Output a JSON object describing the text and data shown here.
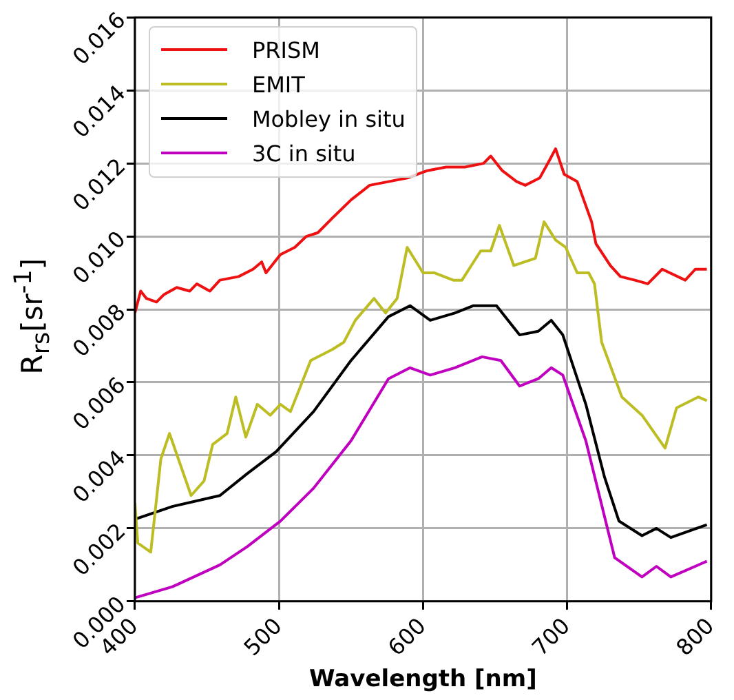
{
  "chart_data": {
    "type": "line",
    "xlabel": "Wavelength [nm]",
    "ylabel": "R$_{rs}$[sr$^{-1}$]",
    "xlim": [
      400,
      800
    ],
    "ylim": [
      0,
      0.016
    ],
    "xticks": [
      400,
      500,
      600,
      700,
      800
    ],
    "yticks": [
      {
        "value": 0,
        "label": "0.000"
      },
      {
        "value": 0.002,
        "label": "0.002"
      },
      {
        "value": 0.004,
        "label": "0.004"
      },
      {
        "value": 0.006,
        "label": "0.006"
      },
      {
        "value": 0.008,
        "label": "0.008"
      },
      {
        "value": 0.01,
        "label": "0.010"
      },
      {
        "value": 0.012,
        "label": "0.012"
      },
      {
        "value": 0.014,
        "label": "0.014"
      },
      {
        "value": 0.016,
        "label": "0.016"
      }
    ],
    "grid": true,
    "legend": "top left",
    "marker": "none",
    "line_style": "solid",
    "series": [
      {
        "name": "PRISM",
        "color": "#ee1111",
        "x": [
          400,
          404,
          408,
          415,
          420,
          429,
          438,
          443,
          452,
          459,
          472,
          482,
          488,
          491,
          501,
          511,
          519,
          527,
          537,
          550,
          563,
          576,
          589,
          603,
          616,
          629,
          642,
          647,
          655,
          665,
          671,
          681,
          688,
          692,
          698,
          707,
          717,
          720,
          730,
          737,
          747,
          756,
          766,
          782,
          789,
          797
        ],
        "values": [
          0.0079,
          0.0085,
          0.0083,
          0.0082,
          0.0084,
          0.0086,
          0.0085,
          0.0087,
          0.0085,
          0.0088,
          0.0089,
          0.0091,
          0.0093,
          0.009,
          0.0095,
          0.0097,
          0.01,
          0.0101,
          0.0105,
          0.011,
          0.0114,
          0.0115,
          0.0116,
          0.0118,
          0.0119,
          0.0119,
          0.012,
          0.0122,
          0.0118,
          0.0115,
          0.0114,
          0.0116,
          0.0121,
          0.0124,
          0.0117,
          0.0115,
          0.0104,
          0.0098,
          0.0092,
          0.0089,
          0.0088,
          0.0087,
          0.0091,
          0.0088,
          0.0091,
          0.0091
        ]
      },
      {
        "name": "EMIT",
        "color": "#bcbd22",
        "x": [
          400,
          402,
          411,
          418,
          424,
          439,
          448,
          454,
          464,
          470,
          477,
          485,
          494,
          501,
          508,
          522,
          537,
          545,
          553,
          566,
          574,
          582,
          589,
          600,
          608,
          621,
          627,
          640,
          647,
          653,
          663,
          678,
          684,
          692,
          699,
          707,
          715,
          719,
          724,
          738,
          752,
          768,
          776,
          791,
          797
        ],
        "values": [
          0.0027,
          0.0016,
          0.00135,
          0.0039,
          0.0046,
          0.0029,
          0.0033,
          0.0043,
          0.0046,
          0.0056,
          0.0045,
          0.0054,
          0.0051,
          0.0054,
          0.0052,
          0.0066,
          0.0069,
          0.0071,
          0.0077,
          0.0083,
          0.0079,
          0.0083,
          0.0097,
          0.009,
          0.009,
          0.0088,
          0.0088,
          0.0096,
          0.0096,
          0.0103,
          0.0092,
          0.0094,
          0.0104,
          0.0099,
          0.0097,
          0.009,
          0.009,
          0.0087,
          0.0071,
          0.0056,
          0.0051,
          0.0042,
          0.0053,
          0.0056,
          0.0055
        ]
      },
      {
        "name": "Mobley in situ",
        "color": "#000000",
        "x": [
          400,
          426,
          459,
          478,
          498,
          524,
          550,
          576,
          591,
          605,
          622,
          635,
          651,
          667,
          680,
          689,
          697,
          713,
          726,
          736,
          752,
          762,
          772,
          797
        ],
        "values": [
          0.00225,
          0.0026,
          0.0029,
          0.0035,
          0.0041,
          0.0052,
          0.0066,
          0.0078,
          0.0081,
          0.0077,
          0.0079,
          0.0081,
          0.0081,
          0.0073,
          0.0074,
          0.0077,
          0.0073,
          0.0054,
          0.0034,
          0.0022,
          0.0018,
          0.002,
          0.00175,
          0.0021
        ]
      },
      {
        "name": "3C in situ",
        "color": "#bf00bf",
        "x": [
          400,
          426,
          459,
          478,
          501,
          524,
          550,
          576,
          591,
          605,
          622,
          641,
          654,
          667,
          680,
          689,
          697,
          713,
          733,
          752,
          762,
          772,
          797
        ],
        "values": [
          0.0001,
          0.0004,
          0.001,
          0.0015,
          0.0022,
          0.0031,
          0.0044,
          0.0061,
          0.0064,
          0.0062,
          0.0064,
          0.0067,
          0.0066,
          0.0059,
          0.0061,
          0.0064,
          0.0062,
          0.0044,
          0.0012,
          0.00067,
          0.00096,
          0.00067,
          0.0011
        ]
      }
    ]
  }
}
